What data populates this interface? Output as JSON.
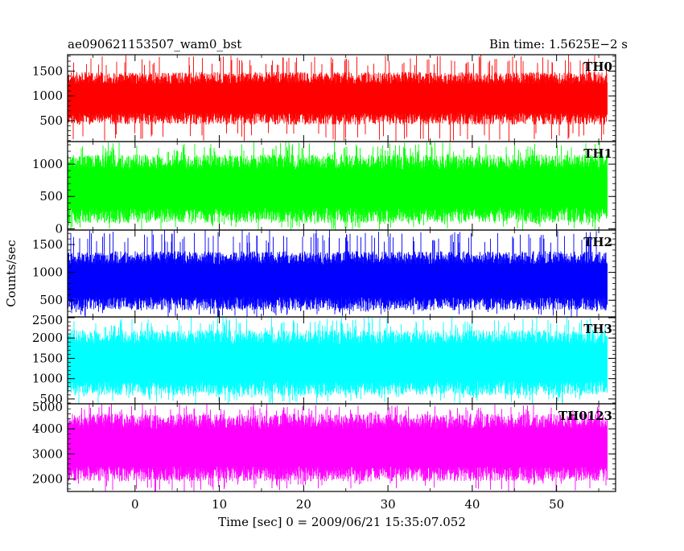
{
  "header": {
    "title": "ae090621153507_wam0_bst",
    "bin_time": "Bin time: 1.5625E−2 s"
  },
  "chart_data": {
    "type": "line",
    "title": "ae090621153507_wam0_bst",
    "xlabel": "Time [sec] 0 = 2009/06/21 15:35:07.052",
    "ylabel": "Counts/sec",
    "xlim": [
      -8,
      57
    ],
    "x_ticks": [
      0,
      10,
      20,
      30,
      40,
      50
    ],
    "x_tick_labels": [
      "0",
      "10",
      "20",
      "30",
      "40",
      "50"
    ],
    "x_data_range": [
      -8,
      56
    ],
    "bin_time": 0.015625,
    "grid": false,
    "panels": [
      {
        "name": "TH0",
        "color": "#ff0000",
        "ylim": [
          80,
          1830
        ],
        "y_ticks": [
          500,
          1000,
          1500
        ],
        "y_tick_labels": [
          "500",
          "1000",
          "1500"
        ],
        "mean": 880,
        "noise_low": 420,
        "noise_high": 1480,
        "spike_max": 1830
      },
      {
        "name": "TH1",
        "color": "#00ff00",
        "ylim": [
          -20,
          1350
        ],
        "y_ticks": [
          0,
          500,
          1000
        ],
        "y_tick_labels": [
          "0",
          "500",
          "1000"
        ],
        "mean": 560,
        "noise_low": 90,
        "noise_high": 1150,
        "spike_max": 1350
      },
      {
        "name": "TH2",
        "color": "#0000ff",
        "ylim": [
          200,
          1760
        ],
        "y_ticks": [
          500,
          1000,
          1500
        ],
        "y_tick_labels": [
          "500",
          "1000",
          "1500"
        ],
        "mean": 700,
        "noise_low": 320,
        "noise_high": 1380,
        "spike_max": 1760
      },
      {
        "name": "TH3",
        "color": "#00ffff",
        "ylim": [
          380,
          2520
        ],
        "y_ticks": [
          500,
          1000,
          1500,
          2000,
          2500
        ],
        "y_tick_labels": [
          "500",
          "1000",
          "1500",
          "2000",
          "2500"
        ],
        "mean": 1300,
        "noise_low": 580,
        "noise_high": 2200,
        "spike_max": 2520
      },
      {
        "name": "TH0123",
        "color": "#ff00ff",
        "ylim": [
          1500,
          5000
        ],
        "y_ticks": [
          2000,
          3000,
          4000,
          5000
        ],
        "y_tick_labels": [
          "2000",
          "3000",
          "4000",
          "5000"
        ],
        "mean": 3000,
        "noise_low": 1900,
        "noise_high": 4600,
        "spike_max": 5000
      }
    ]
  }
}
